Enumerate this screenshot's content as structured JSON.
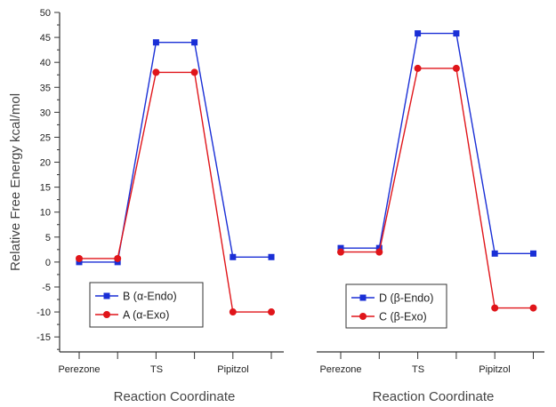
{
  "chart_data": [
    {
      "type": "line",
      "step_profile": true,
      "xlabel": "Reaction Coordinate",
      "ylabel": "Relative Free Energy kcal/mol",
      "ylim": [
        -18,
        50
      ],
      "yticks": [
        -15,
        -10,
        -5,
        0,
        5,
        10,
        15,
        20,
        25,
        30,
        35,
        40,
        45,
        50
      ],
      "categories": [
        "Perezone",
        "TS",
        "Pipitzol"
      ],
      "x": [
        0,
        1,
        2,
        3,
        4,
        5
      ],
      "series": [
        {
          "name": "B (α-Endo)",
          "color": "#1a2fd6",
          "marker": "square",
          "values": [
            0,
            0,
            44,
            44,
            1,
            1
          ]
        },
        {
          "name": "A (α-Exo)",
          "color": "#e0151a",
          "marker": "circle",
          "values": [
            0.7,
            0.7,
            38,
            38,
            -10,
            -10
          ]
        }
      ],
      "legend_position": "bottom-right"
    },
    {
      "type": "line",
      "step_profile": true,
      "xlabel": "Reaction Coordinate",
      "ylim": [
        -18,
        50
      ],
      "categories": [
        "Perezone",
        "TS",
        "Pipitzol"
      ],
      "x": [
        0,
        1,
        2,
        3,
        4,
        5
      ],
      "series": [
        {
          "name": "D (β-Endo)",
          "color": "#1a2fd6",
          "marker": "square",
          "values": [
            2.8,
            2.8,
            45.8,
            45.8,
            1.7,
            1.7
          ]
        },
        {
          "name": "C (β-Exo)",
          "color": "#e0151a",
          "marker": "circle",
          "values": [
            2,
            2,
            38.8,
            38.8,
            -9.2,
            -9.2
          ]
        }
      ],
      "legend_position": "bottom-center"
    }
  ]
}
